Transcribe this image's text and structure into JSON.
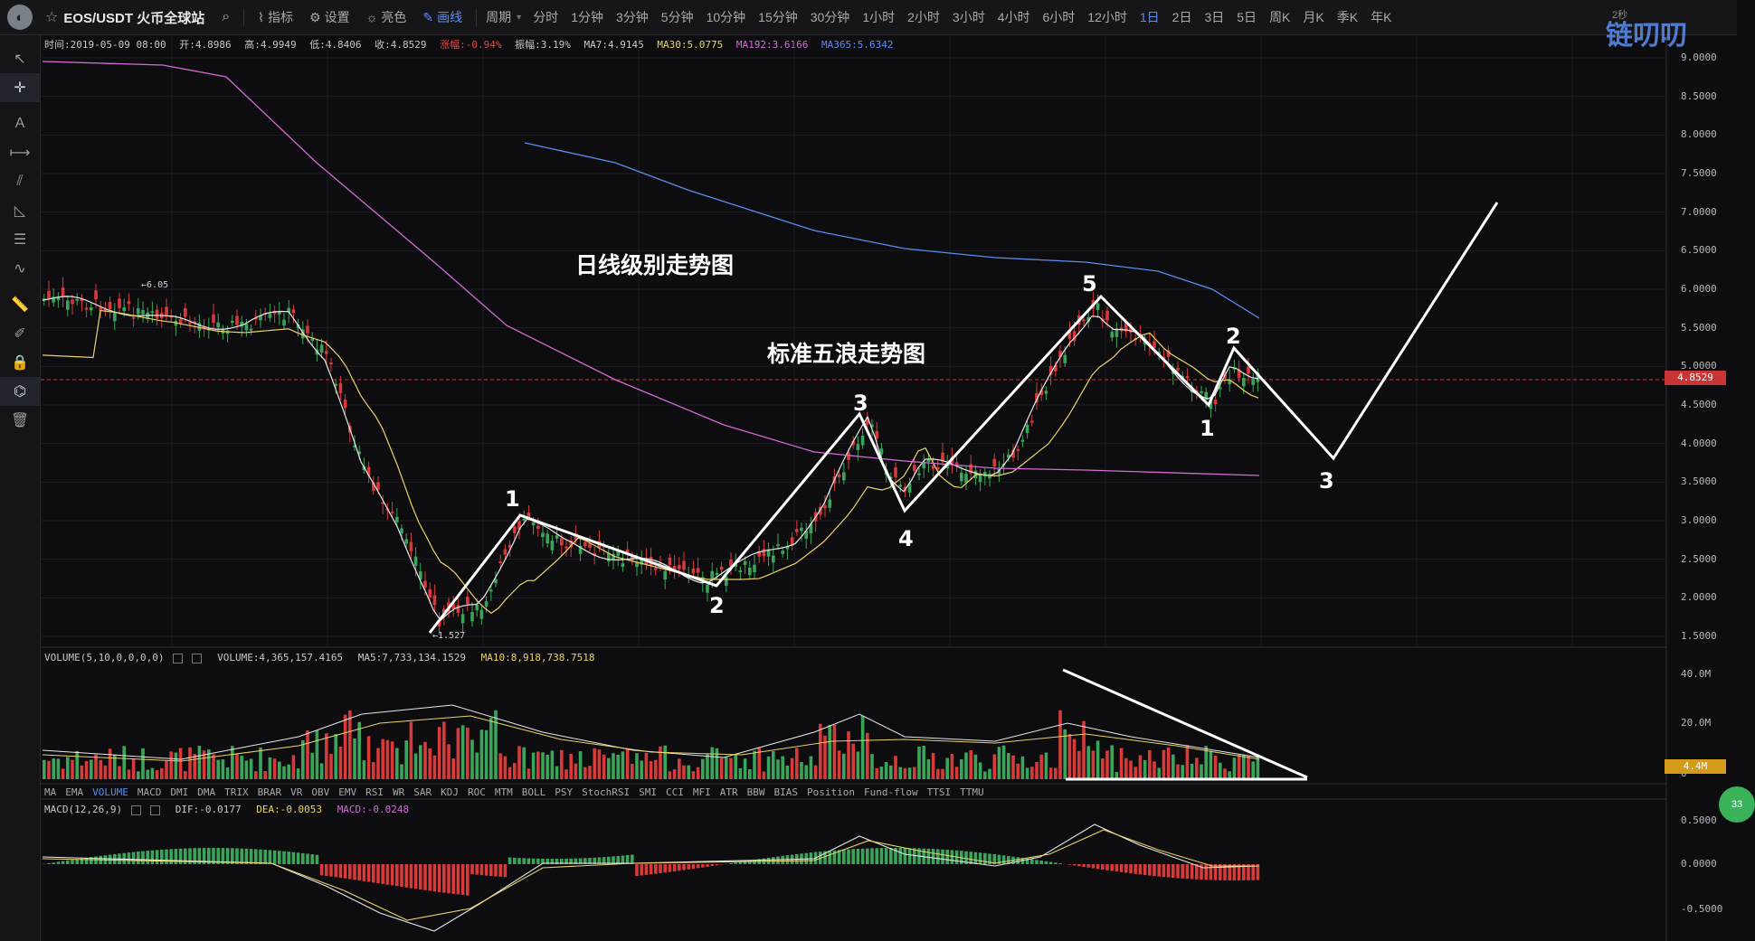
{
  "topbar": {
    "pair": "EOS/USDT 火币全球站",
    "buttons": [
      {
        "label": "指标",
        "icon": "indicator-icon"
      },
      {
        "label": "设置",
        "icon": "gear-icon"
      },
      {
        "label": "亮色",
        "icon": "sun-icon"
      },
      {
        "label": "画线",
        "icon": "pencil-icon",
        "active": true
      }
    ],
    "period_label": "周期",
    "periods": [
      "分时",
      "1分钟",
      "3分钟",
      "5分钟",
      "10分钟",
      "15分钟",
      "30分钟",
      "1小时",
      "2小时",
      "3小时",
      "4小时",
      "6小时",
      "12小时",
      "1日",
      "2日",
      "3日",
      "5日",
      "周K",
      "月K",
      "季K",
      "年K"
    ],
    "active_period": "1日",
    "countdown": "2秒",
    "watermark": "链叨叨"
  },
  "info": {
    "time": "时间:2019-05-09 08:00",
    "open": "开:4.8986",
    "high": "高:4.9949",
    "low": "低:4.8406",
    "close": "收:4.8529",
    "change": "涨幅:-0.94%",
    "amplitude": "振幅:3.19%",
    "ma7": "MA7:4.9145",
    "ma30": "MA30:5.0775",
    "ma192": "MA192:3.6166",
    "ma365": "MA365:5.6342"
  },
  "colors": {
    "up": "#3aa55a",
    "down": "#d83a3a",
    "ma7": "#e8e8e8",
    "ma30": "#e9d36a",
    "ma192": "#d36ad6",
    "ma365": "#5b8def"
  },
  "price_axis": [
    "9.0000",
    "8.5000",
    "8.0000",
    "7.5000",
    "7.0000",
    "6.5000",
    "6.0000",
    "5.5000",
    "5.0000",
    "4.5000",
    "4.0000",
    "3.5000",
    "3.0000",
    "2.5000",
    "2.0000",
    "1.5000"
  ],
  "current_price": "4.8529",
  "high_marker": "6.05",
  "low_marker": "1.527",
  "annotations": {
    "title1": "日线级别走势图",
    "title2": "标准五浪走势图"
  },
  "waves": [
    "1",
    "2",
    "3",
    "4",
    "5",
    "1",
    "2",
    "3"
  ],
  "volume": {
    "label": "VOLUME(5,10,0,0,0,0)",
    "value": "VOLUME:4,365,157.4165",
    "ma5": "MA5:7,733,134.1529",
    "ma10": "MA10:8,918,738.7518",
    "axis": [
      "40.0M",
      "20.0M",
      "0"
    ],
    "current": "4.4M"
  },
  "indicator_tabs": [
    "MA",
    "EMA",
    "VOLUME",
    "MACD",
    "DMI",
    "DMA",
    "TRIX",
    "BRAR",
    "VR",
    "OBV",
    "EMV",
    "RSI",
    "WR",
    "SAR",
    "KDJ",
    "ROC",
    "MTM",
    "BOLL",
    "PSY",
    "StochRSI",
    "SMI",
    "CCI",
    "MFI",
    "ATR",
    "BBW",
    "BIAS",
    "Position",
    "Fund-flow",
    "TTSI",
    "TTMU"
  ],
  "active_indicator": "VOLUME",
  "macd": {
    "label": "MACD(12,26,9)",
    "dif": "DIF:-0.0177",
    "dea": "DEA:-0.0053",
    "macd": "MACD:-0.0248",
    "axis": [
      "0.5000",
      "0.0000",
      "-0.5000"
    ]
  },
  "bubble": "33"
}
